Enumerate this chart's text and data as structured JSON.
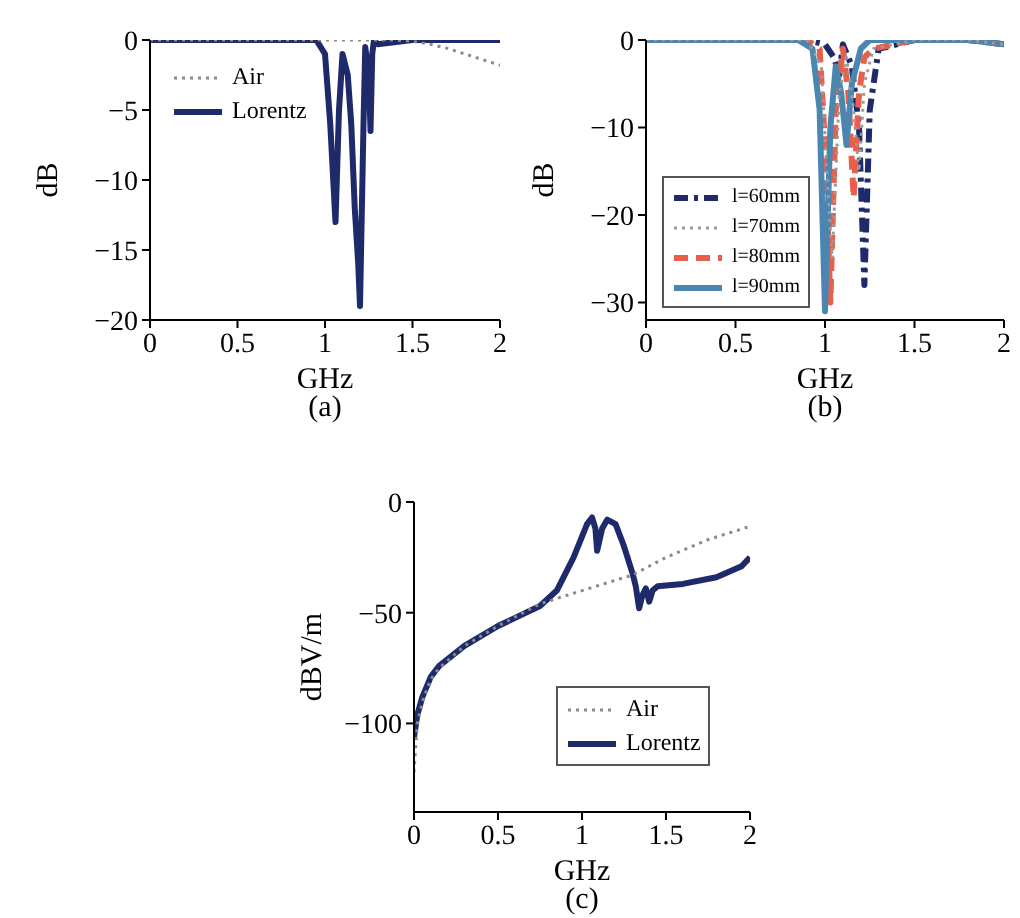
{
  "chart_data": [
    {
      "type": "line",
      "title": "(a)",
      "xlabel": "GHz",
      "ylabel": "dB",
      "xlim": [
        0,
        2
      ],
      "xticks": [
        0,
        0.5,
        1,
        1.5,
        2
      ],
      "ylim": [
        -20,
        0
      ],
      "yticks": [
        0,
        -5,
        -10,
        -15,
        -20
      ],
      "grid": false,
      "legend": "top left",
      "series": [
        {
          "name": "Air",
          "color": "#8a8a8a",
          "line_style": "dotted",
          "x": [
            0,
            0.5,
            1,
            1.4,
            1.5,
            1.6,
            1.7,
            1.8,
            1.9,
            2
          ],
          "values": [
            0,
            0,
            0,
            0,
            -0.1,
            -0.3,
            -0.6,
            -1,
            -1.4,
            -1.8
          ]
        },
        {
          "name": "Lorentz",
          "color": "#1f2a6b",
          "line_style": "solid",
          "x": [
            0,
            0.9,
            0.95,
            1,
            1.03,
            1.06,
            1.08,
            1.1,
            1.13,
            1.15,
            1.17,
            1.19,
            1.2,
            1.22,
            1.23,
            1.24,
            1.25,
            1.26,
            1.27,
            1.28,
            1.3,
            1.5,
            2
          ],
          "values": [
            0,
            0,
            0,
            -1,
            -6,
            -13,
            -5,
            -1,
            -2.5,
            -6,
            -12,
            -16,
            -19,
            -6,
            -0.5,
            -1.5,
            -2,
            -6.5,
            -1,
            0,
            -0.3,
            0,
            0
          ]
        }
      ]
    },
    {
      "type": "line",
      "title": "(b)",
      "xlabel": "GHz",
      "ylabel": "dB",
      "xlim": [
        0,
        2
      ],
      "xticks": [
        0,
        0.5,
        1,
        1.5,
        2
      ],
      "ylim": [
        -32,
        0
      ],
      "yticks": [
        0,
        -10,
        -20,
        -30
      ],
      "grid": false,
      "legend": "left",
      "series": [
        {
          "name": "l=60mm",
          "color": "#1f2a6b",
          "line_style": "dashdot",
          "x": [
            0,
            0.9,
            1,
            1.05,
            1.08,
            1.1,
            1.15,
            1.19,
            1.22,
            1.25,
            1.3,
            1.5,
            1.8,
            2
          ],
          "values": [
            0,
            0,
            -0.5,
            -2,
            -4,
            -0.5,
            -3,
            -10,
            -28,
            -8,
            -1,
            0,
            0,
            -0.5
          ]
        },
        {
          "name": "l=70mm",
          "color": "#9a9a9a",
          "line_style": "dotted",
          "x": [
            0,
            0.9,
            0.98,
            1.01,
            1.04,
            1.08,
            1.12,
            1.16,
            1.19,
            1.22,
            1.27,
            1.5,
            1.8,
            2
          ],
          "values": [
            0,
            0,
            -3,
            -15,
            -25,
            -6,
            -2,
            -8,
            -15,
            -5,
            -1,
            0,
            0,
            -0.5
          ]
        },
        {
          "name": "l=80mm",
          "color": "#e8604c",
          "line_style": "dashed",
          "x": [
            0,
            0.9,
            0.97,
            1,
            1.03,
            1.06,
            1.1,
            1.13,
            1.16,
            1.19,
            1.22,
            1.27,
            1.5,
            1.8,
            2
          ],
          "values": [
            0,
            0,
            -1,
            -12,
            -30,
            -8,
            -1,
            -6,
            -18,
            -6,
            -2,
            -1,
            0,
            0,
            -0.5
          ]
        },
        {
          "name": "l=90mm",
          "color": "#4a86b0",
          "line_style": "solid",
          "x": [
            0,
            0.85,
            0.93,
            0.97,
            1,
            1.03,
            1.06,
            1.09,
            1.12,
            1.15,
            1.2,
            1.25,
            1.5,
            1.8,
            2
          ],
          "values": [
            0,
            0,
            -1,
            -8,
            -31,
            -10,
            -3,
            -6,
            -12,
            -5,
            -1,
            0,
            0,
            0,
            -0.5
          ]
        }
      ]
    },
    {
      "type": "line",
      "title": "(c)",
      "xlabel": "GHz",
      "ylabel": "dBV/m",
      "xlim": [
        0,
        2
      ],
      "xticks": [
        0,
        0.5,
        1,
        1.5,
        2
      ],
      "ylim": [
        -140,
        0
      ],
      "yticks": [
        0,
        -50,
        -100
      ],
      "grid": false,
      "legend": "bottom right",
      "series": [
        {
          "name": "Air",
          "color": "#8a8a8a",
          "line_style": "dotted",
          "x": [
            0,
            0.02,
            0.05,
            0.1,
            0.15,
            0.3,
            0.5,
            0.75,
            1,
            1.3,
            1.5,
            1.75,
            2
          ],
          "values": [
            -122,
            -100,
            -90,
            -80,
            -75,
            -65,
            -56,
            -46,
            -40,
            -33,
            -25,
            -17,
            -11
          ]
        },
        {
          "name": "Lorentz",
          "color": "#1f2a6b",
          "line_style": "solid",
          "x": [
            0,
            0.02,
            0.05,
            0.1,
            0.15,
            0.3,
            0.5,
            0.75,
            0.85,
            0.95,
            1.03,
            1.06,
            1.08,
            1.09,
            1.12,
            1.15,
            1.2,
            1.25,
            1.3,
            1.32,
            1.34,
            1.36,
            1.38,
            1.4,
            1.42,
            1.45,
            1.6,
            1.8,
            1.95,
            2
          ],
          "values": [
            -106,
            -96,
            -88,
            -79,
            -74,
            -65,
            -56,
            -47,
            -40,
            -25,
            -10,
            -7,
            -12,
            -22,
            -12,
            -8,
            -10,
            -20,
            -32,
            -38,
            -48,
            -42,
            -39,
            -45,
            -40,
            -38,
            -37,
            -34,
            -29,
            -25
          ]
        }
      ]
    }
  ]
}
